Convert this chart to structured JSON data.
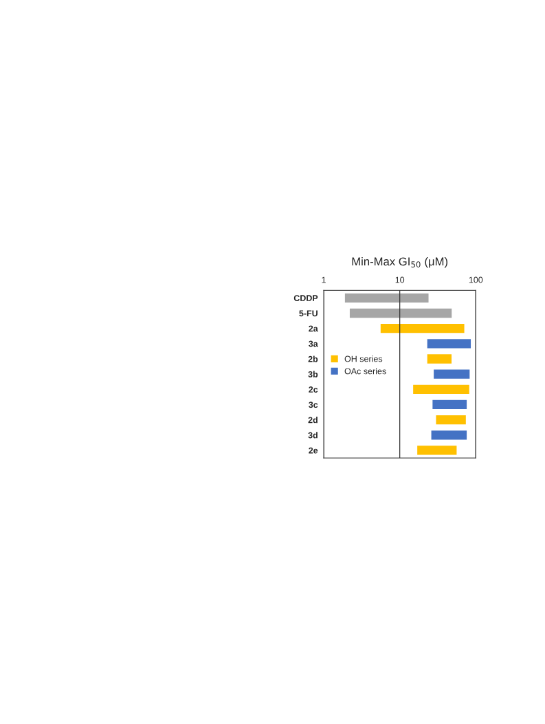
{
  "chart_data": {
    "type": "bar",
    "orientation": "horizontal",
    "title": "Min-Max GI$_{50}$ (μM)",
    "categories": [
      "CDDP",
      "5-FU",
      "2a",
      "3a",
      "2b",
      "3b",
      "2c",
      "3c",
      "2d",
      "3d",
      "2e"
    ],
    "series": [
      {
        "color": "#a6a6a6",
        "base": [
          1.9,
          2.2,
          null,
          null,
          null,
          null,
          null,
          null,
          null,
          null,
          null
        ],
        "values": [
          22,
          46,
          null,
          null,
          null,
          null,
          null,
          null,
          null,
          null,
          null
        ]
      },
      {
        "name": "OH series",
        "color": "#ffc000",
        "base": [
          null,
          null,
          5.6,
          null,
          23,
          null,
          15,
          null,
          30,
          null,
          17
        ],
        "values": [
          null,
          null,
          65,
          null,
          25,
          null,
          67,
          null,
          44,
          null,
          39
        ]
      },
      {
        "name": "OAc series",
        "color": "#4472c4",
        "base": [
          null,
          null,
          null,
          23,
          null,
          28,
          null,
          27,
          null,
          26,
          null
        ],
        "values": [
          null,
          null,
          null,
          63,
          null,
          55,
          null,
          49,
          null,
          50,
          null
        ]
      }
    ],
    "log": "x",
    "xlim": [
      1,
      100
    ],
    "xticks": [
      1,
      10,
      100
    ],
    "grid": "x",
    "legend": "left"
  }
}
